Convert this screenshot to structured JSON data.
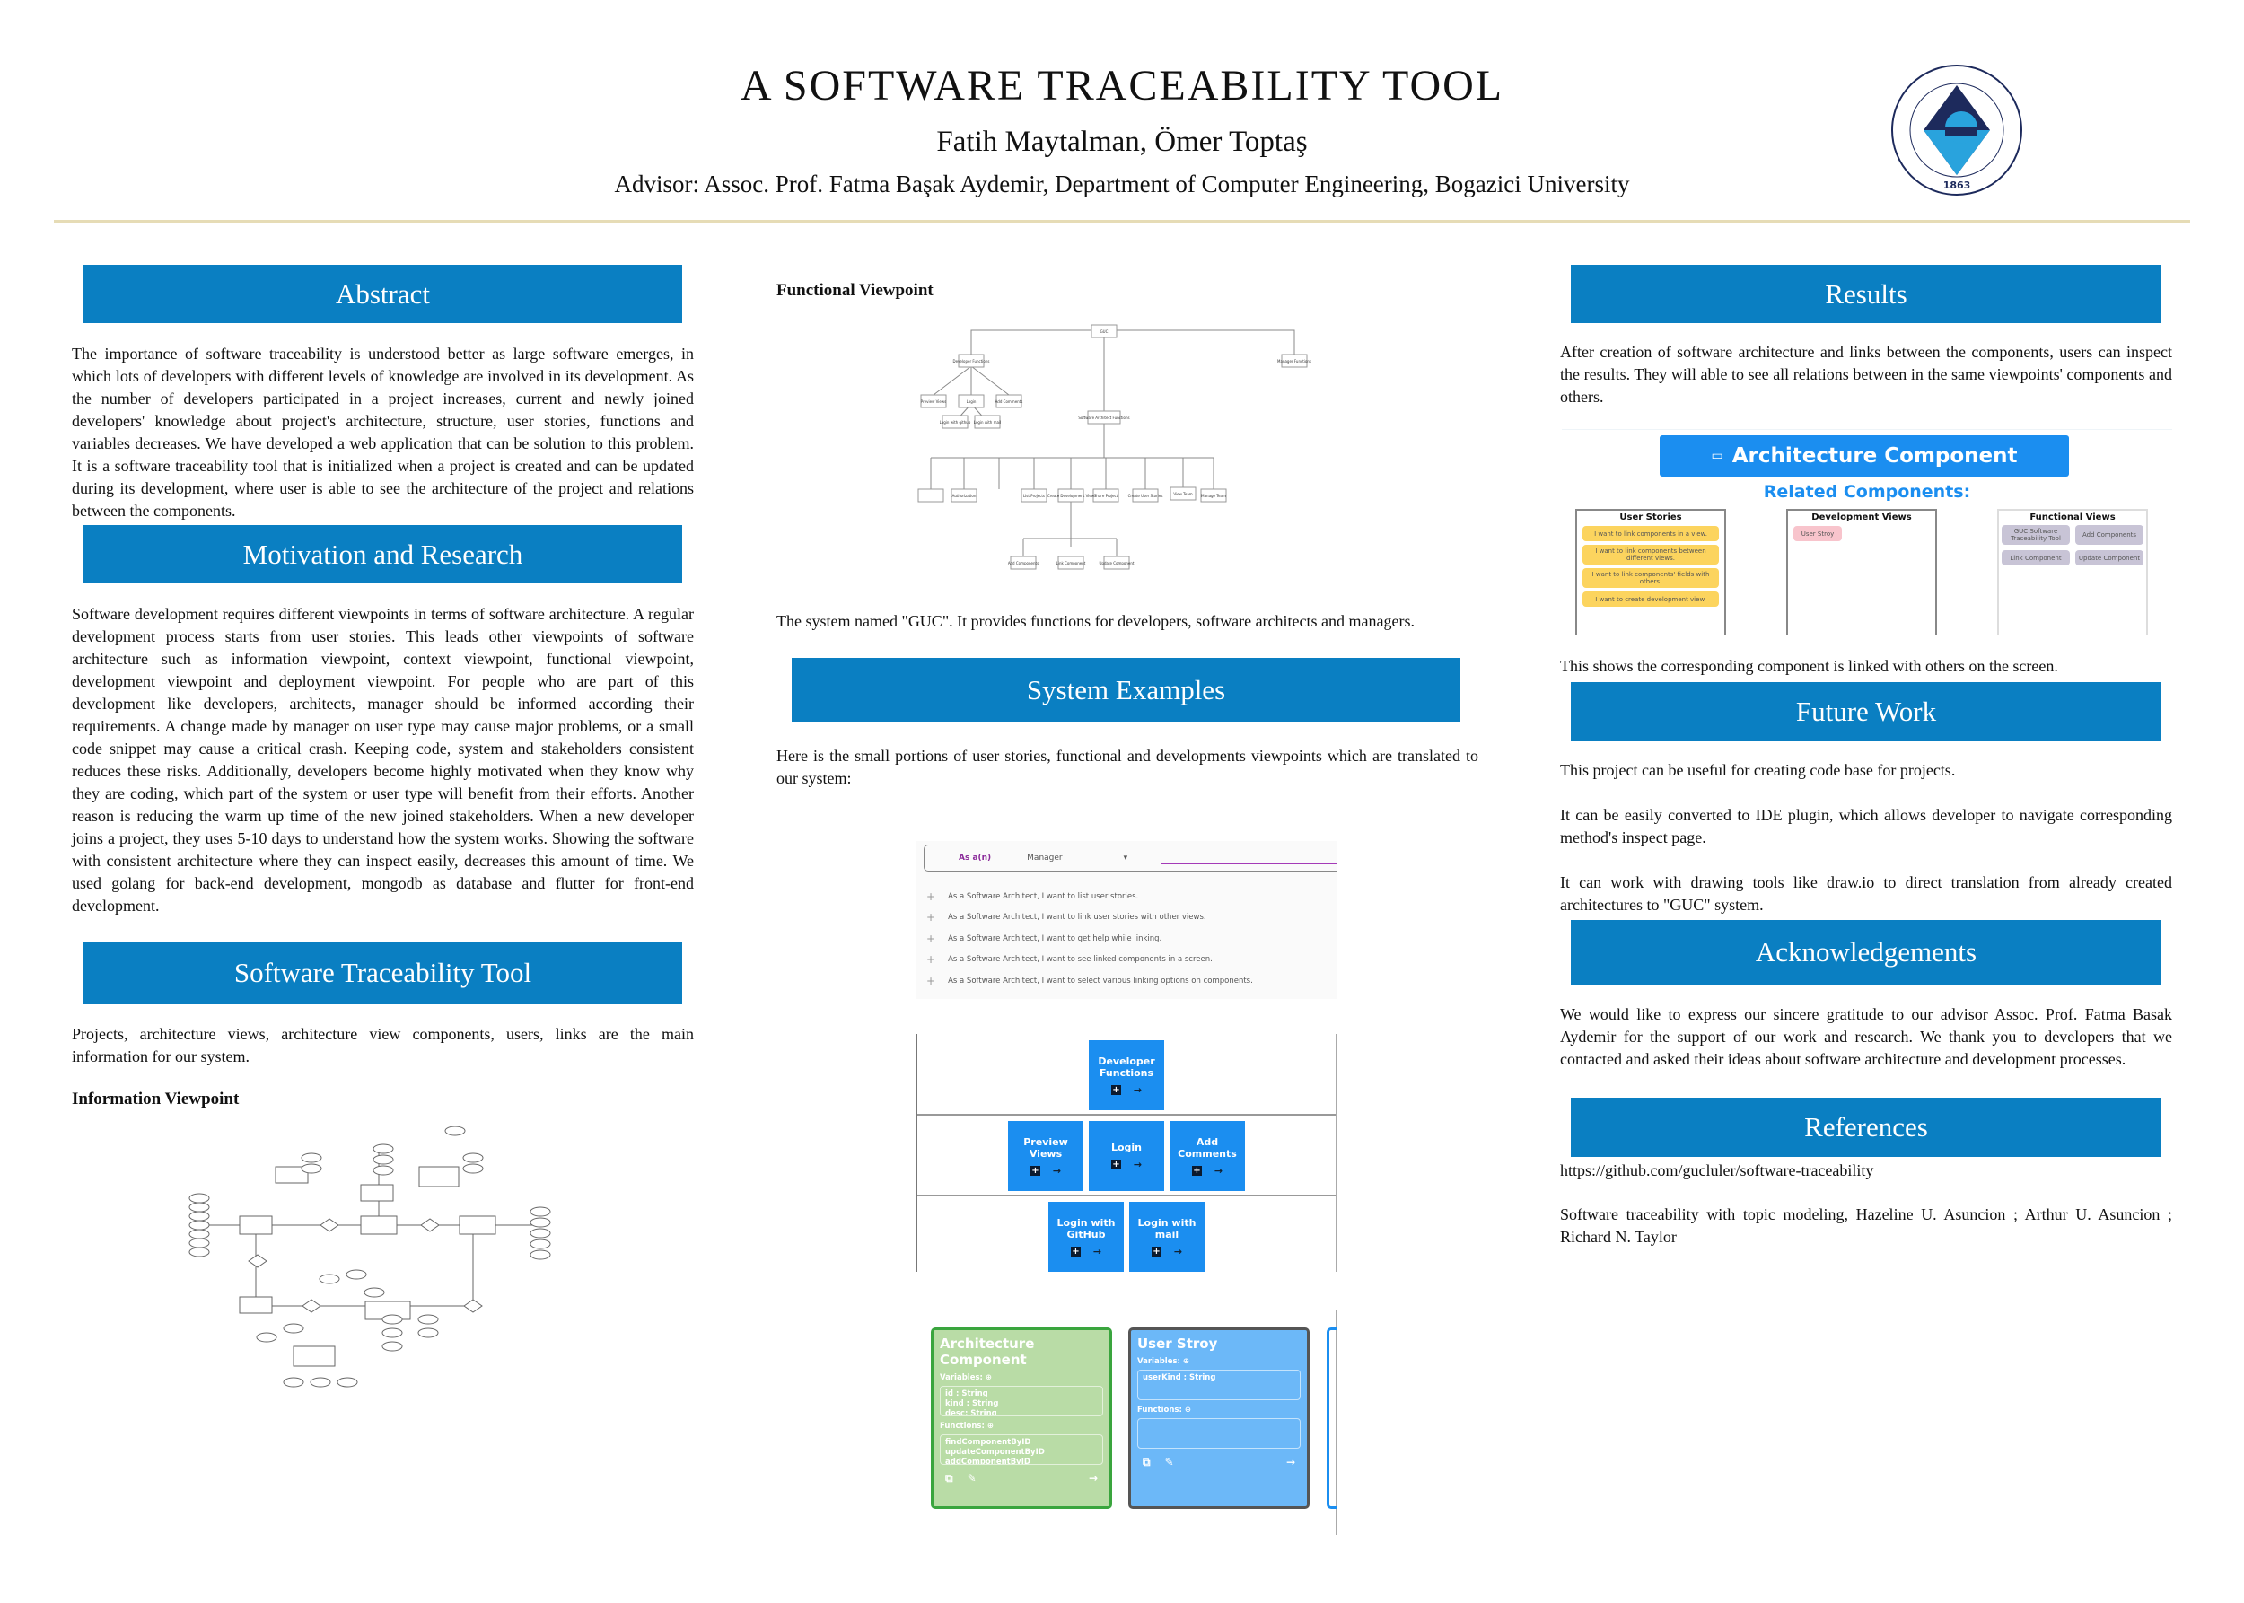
{
  "header": {
    "title": "A SOFTWARE TRACEABILITY TOOL",
    "authors": "Fatih Maytalman, Ömer Toptaş",
    "advisor": "Advisor: Assoc. Prof. Fatma Başak Aydemir, Department of Computer Engineering, Bogazici University",
    "logo_text": "BOĞAZİÇİ ÜNİVERSİTESİ 1863"
  },
  "colors": {
    "section_header": "#0a7fc2",
    "rule": "#e6dcb6",
    "app_blue": "#1b8ef0"
  },
  "abstract": {
    "title": "Abstract",
    "text": "The importance of software traceability is understood better as large software emerges, in which lots of developers with different levels of knowledge are involved in its development. As the number of developers participated in a project increases, current and newly joined developers' knowledge about project's architecture, structure, user stories, functions and variables decreases. We have developed a web application that can be solution to this problem. It is a software traceability tool that is initialized when a project is created and can be updated during its development, where user is able to see the architecture of the project and relations between the components."
  },
  "motivation": {
    "title": "Motivation and Research",
    "text": "Software development requires different viewpoints in terms of software architecture. A regular development process starts from user stories. This leads other viewpoints of software architecture such as information viewpoint, context viewpoint, functional viewpoint, development viewpoint and deployment viewpoint. For people who are part of this development like developers, architects, manager should be informed according their requirements. A change made by manager on user type may cause major problems, or a small code snippet may cause a critical crash. Keeping code, system and stakeholders consistent reduces these risks. Additionally, developers become highly motivated when they know why they are coding, which part of the system or user type will benefit from their efforts. Another reason is reducing the warm up time of the new joined stakeholders. When a new developer joins a project, they uses 5-10 days to understand how the system works. Showing the software with consistent architecture where they can inspect easily, decreases this amount of time. We used golang for back-end development, mongodb as database and flutter for front-end development."
  },
  "tool": {
    "title": "Software Traceability Tool",
    "text": "Projects, architecture views, architecture view components, users, links are the main information for our system.",
    "info_viewpoint": "Information Viewpoint"
  },
  "functional": {
    "title": "Functional Viewpoint",
    "text": "The system named \"GUC\". It provides functions for developers, software architects and managers.",
    "nodes": {
      "root": "GUC",
      "dev": "Developer Functions",
      "mgr": "Manager Functions",
      "arch": "Software Architect Functions",
      "preview": "Preview Views",
      "login": "Login",
      "comments": "Add Comments",
      "github": "Login with github",
      "mail": "Login with mail",
      "team": "Manage Team",
      "auth": "Authorization",
      "list": "List Projects",
      "create_dev": "Create Development View",
      "share": "Share Project",
      "stories": "Create User Stories",
      "view_team": "View Team",
      "add_comp": "Add Components",
      "link_comp": "Link Component",
      "update_comp": "Update Component"
    }
  },
  "examples": {
    "title": "System Examples",
    "text": "Here is the small portions of user stories, functional and developments viewpoints which are translated to our system:",
    "stories": {
      "label": "As a(n)",
      "role": "Manager",
      "items": [
        "As a Software Architect, I want to list user stories.",
        "As a Software Architect, I want to link user stories with other views.",
        "As a Software Architect, I want to get help while linking.",
        "As a Software Architect, I want to see linked components in a screen.",
        "As a Software Architect, I want to select various linking options on components."
      ]
    },
    "functions": [
      "Developer Functions",
      "Preview Views",
      "Login",
      "Add Comments",
      "Login with GitHub",
      "Login with mail"
    ],
    "cards": [
      {
        "title": "Architecture Component",
        "variables_label": "Variables:",
        "variables": [
          "id : String",
          "kind : String",
          "desc: String"
        ],
        "functions_label": "Functions:",
        "functions": [
          "findComponentByID",
          "updateComponentByID",
          "addComponentByID"
        ]
      },
      {
        "title": "User Stroy",
        "variables_label": "Variables:",
        "variables": [
          "userKind : String"
        ],
        "functions_label": "Functions:",
        "functions": []
      }
    ]
  },
  "results": {
    "title": "Results",
    "text": "After creation of software architecture and links between the components, users can inspect the results. They will able to see all relations between in the same viewpoints' components and others.",
    "caption": "This shows the corresponding component is linked with others on the screen.",
    "component_title": "Architecture Component",
    "related": "Related Components:",
    "user_stories": {
      "title": "User Stories",
      "items": [
        "I want to link components in a view.",
        "I want to link components between different views.",
        "I want to link components' fields with others.",
        "I want to create development view."
      ]
    },
    "dev_views": {
      "title": "Development Views",
      "items": [
        "User Stroy"
      ]
    },
    "func_views": {
      "title": "Functional Views",
      "items": [
        "GUC Software Traceability Tool",
        "Add Components",
        "Link Component",
        "Update Component"
      ]
    }
  },
  "future": {
    "title": "Future Work",
    "paragraphs": [
      "This project can be useful for creating code base for projects.",
      "It can be easily converted to IDE plugin, which allows developer to navigate corresponding method's inspect page.",
      "It can work with drawing tools like draw.io to direct translation from already created architectures to \"GUC\" system."
    ]
  },
  "ack": {
    "title": "Acknowledgements",
    "text": "We would like to express our sincere gratitude to our advisor Assoc. Prof. Fatma Basak Aydemir for the support of our work and research. We thank you to developers that we contacted and asked their ideas about software architecture and development processes."
  },
  "references": {
    "title": "References",
    "items": [
      "https://github.com/gucluler/software-traceability",
      "Software traceability with topic modeling, Hazeline U. Asuncion ; Arthur U. Asuncion ; Richard N. Taylor"
    ]
  }
}
